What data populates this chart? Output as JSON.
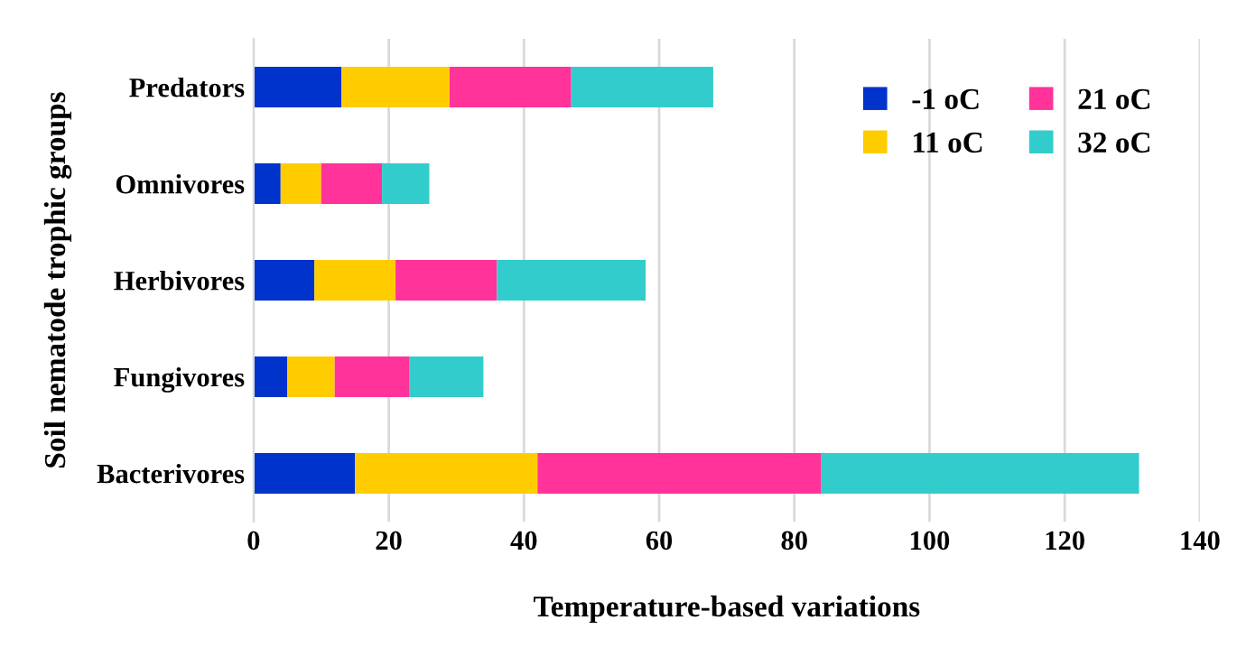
{
  "chart_data": {
    "type": "bar",
    "orientation": "horizontal",
    "stacked": true,
    "categories": [
      "Predators",
      "Omnivores",
      "Herbivores",
      "Fungivores",
      "Bacterivores"
    ],
    "series": [
      {
        "name": "-1 oC",
        "color": "#0033cc",
        "values": [
          13,
          4,
          9,
          5,
          15
        ]
      },
      {
        "name": "11 oC",
        "color": "#ffcc00",
        "values": [
          16,
          6,
          12,
          7,
          27
        ]
      },
      {
        "name": "21 oC",
        "color": "#ff3399",
        "values": [
          18,
          9,
          15,
          11,
          42
        ]
      },
      {
        "name": "32 oC",
        "color": "#33cccc",
        "values": [
          21,
          7,
          22,
          11,
          47
        ]
      }
    ],
    "xlim": [
      0,
      140
    ],
    "xticks": [
      0,
      20,
      40,
      60,
      80,
      100,
      120,
      140
    ],
    "xlabel": "Temperature-based variations",
    "ylabel": "Soil nematode trophic groups",
    "grid": "x",
    "legend": "top right"
  }
}
